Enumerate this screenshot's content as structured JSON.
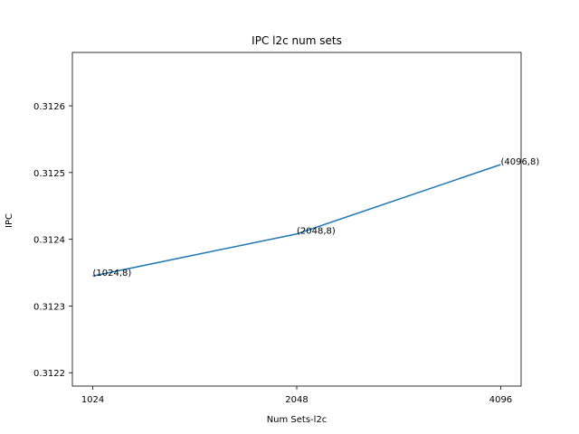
{
  "chart_data": {
    "type": "line",
    "title": "IPC l2c num sets",
    "xlabel": "Num Sets-l2c",
    "ylabel": "IPC",
    "x": [
      "1024",
      "2048",
      "4096"
    ],
    "xticks": [
      "1024",
      "2048",
      "4096"
    ],
    "yticks": [
      "0.3122",
      "0.3123",
      "0.3124",
      "0.3125",
      "0.3126"
    ],
    "ylim": [
      0.31218,
      0.31268
    ],
    "grid": false,
    "series": [
      {
        "values": [
          0.312345,
          0.312408,
          0.312512
        ],
        "color": "#1f77b4"
      }
    ],
    "point_labels": [
      "(1024,8)",
      "(2048,8)",
      "(4096,8)"
    ]
  }
}
